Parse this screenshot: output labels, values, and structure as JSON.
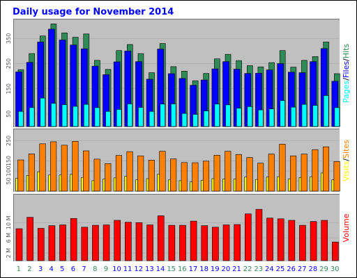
{
  "chart_data": [
    {
      "panel": "hits",
      "type": "bar",
      "title": "Daily usage for November 2014",
      "categories": [
        "1",
        "2",
        "3",
        "4",
        "5",
        "6",
        "7",
        "8",
        "9",
        "10",
        "11",
        "12",
        "13",
        "14",
        "15",
        "16",
        "17",
        "18",
        "19",
        "20",
        "21",
        "22",
        "23",
        "24",
        "25",
        "26",
        "27",
        "28",
        "29",
        "30"
      ],
      "weekend_days": [
        "1",
        "2",
        "8",
        "9",
        "15",
        "16",
        "22",
        "23",
        "29",
        "30"
      ],
      "ylabel_parts": [
        "Pages",
        "/",
        "Files",
        "/",
        "Hits"
      ],
      "yticks": [
        "50",
        "150",
        "250",
        "350"
      ],
      "ylim": [
        0,
        420
      ],
      "series": [
        {
          "name": "Hits",
          "values": [
            226,
            290,
            360,
            408,
            372,
            355,
            368,
            263,
            227,
            302,
            326,
            290,
            214,
            330,
            238,
            220,
            182,
            211,
            269,
            287,
            262,
            242,
            237,
            254,
            302,
            236,
            263,
            278,
            336,
            210
          ]
        },
        {
          "name": "Files",
          "values": [
            217,
            255,
            336,
            387,
            344,
            324,
            309,
            240,
            206,
            257,
            300,
            258,
            188,
            308,
            210,
            191,
            164,
            185,
            229,
            258,
            228,
            211,
            212,
            225,
            250,
            216,
            214,
            258,
            310,
            180
          ]
        },
        {
          "name": "Pages",
          "values": [
            60,
            75,
            113,
            92,
            87,
            80,
            88,
            75,
            60,
            68,
            90,
            76,
            60,
            89,
            90,
            52,
            48,
            62,
            89,
            86,
            73,
            79,
            66,
            70,
            103,
            77,
            88,
            84,
            123,
            75
          ]
        }
      ]
    },
    {
      "panel": "visits",
      "type": "bar",
      "categories": [
        "1",
        "2",
        "3",
        "4",
        "5",
        "6",
        "7",
        "8",
        "9",
        "10",
        "11",
        "12",
        "13",
        "14",
        "15",
        "16",
        "17",
        "18",
        "19",
        "20",
        "21",
        "22",
        "23",
        "24",
        "25",
        "26",
        "27",
        "28",
        "29",
        "30"
      ],
      "ylabel_parts": [
        "Visits",
        "/",
        "Sites"
      ],
      "yticks": [
        "50",
        "100",
        "150",
        "250"
      ],
      "ylim": [
        0,
        300
      ],
      "series": [
        {
          "name": "Sites",
          "values": [
            64,
            78,
            96,
            80,
            80,
            84,
            68,
            52,
            60,
            66,
            74,
            56,
            62,
            84,
            56,
            52,
            46,
            54,
            62,
            60,
            60,
            70,
            58,
            70,
            72,
            60,
            68,
            72,
            90,
            56
          ]
        },
        {
          "name": "Visits",
          "values": [
            155,
            185,
            235,
            245,
            228,
            247,
            200,
            159,
            137,
            177,
            196,
            175,
            154,
            198,
            160,
            142,
            141,
            149,
            178,
            198,
            182,
            167,
            139,
            184,
            233,
            175,
            184,
            206,
            220,
            147
          ]
        }
      ]
    },
    {
      "panel": "volume",
      "type": "bar",
      "categories": [
        "1",
        "2",
        "3",
        "4",
        "5",
        "6",
        "7",
        "8",
        "9",
        "10",
        "11",
        "12",
        "13",
        "14",
        "15",
        "16",
        "17",
        "18",
        "19",
        "20",
        "21",
        "22",
        "23",
        "24",
        "25",
        "26",
        "27",
        "28",
        "29",
        "30"
      ],
      "ylabel_parts": [
        "Volume"
      ],
      "yticks": [
        "2 M",
        "6 M",
        "10 M"
      ],
      "ylim": [
        0,
        17
      ],
      "series": [
        {
          "name": "Volume",
          "values": [
            8.4,
            11.4,
            8.5,
            9.2,
            9.4,
            11.1,
            8.8,
            9.3,
            9.4,
            10.6,
            10.1,
            10.0,
            9.4,
            11.8,
            9.3,
            9.3,
            10.4,
            9.2,
            8.8,
            9.4,
            9.5,
            12.3,
            13.5,
            11.2,
            11.0,
            10.6,
            9.3,
            10.3,
            10.6,
            4.9
          ]
        }
      ]
    }
  ],
  "colors": {
    "background": "#ffffff",
    "border": "#000000",
    "plot_bg": "#c0c0c0",
    "title": "#0000ff",
    "weekday_label": "#0000ff",
    "weekend_label": "#2e8b57",
    "hits": "#2e8b57",
    "files": "#0000ff",
    "pages": "#00ffff",
    "visits": "#ffff00",
    "sites": "#ff8000",
    "volume": "#ff0000",
    "slash": "#000000"
  }
}
